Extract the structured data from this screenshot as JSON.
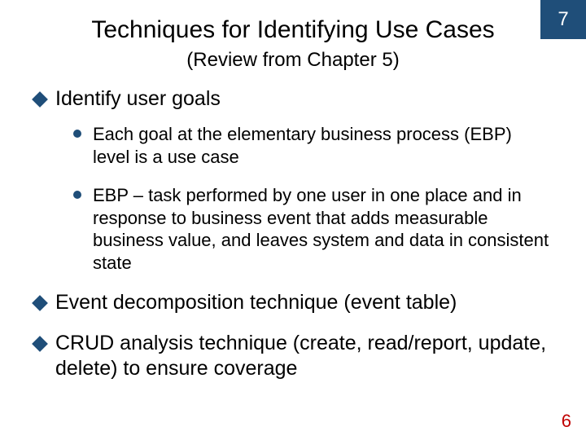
{
  "corner_number": "7",
  "title": "Techniques for Identifying Use Cases",
  "subtitle": "(Review from Chapter 5)",
  "bullets": {
    "b1": "Identify user goals",
    "b1_sub1": "Each goal at the elementary business process (EBP) level is a use case",
    "b1_sub2": "EBP – task performed by one user in one place and in response to business event that adds measurable business value, and leaves system and data in consistent state",
    "b2": "Event decomposition technique (event table)",
    "b3": "CRUD analysis technique (create, read/report, update, delete) to ensure coverage"
  },
  "page_number": "6",
  "colors": {
    "badge_bg": "#1f4e79",
    "badge_fg": "#ffffff",
    "bullet_color": "#1f4e79",
    "pagenum_color": "#c00000",
    "bg": "#ffffff",
    "text": "#000000"
  }
}
